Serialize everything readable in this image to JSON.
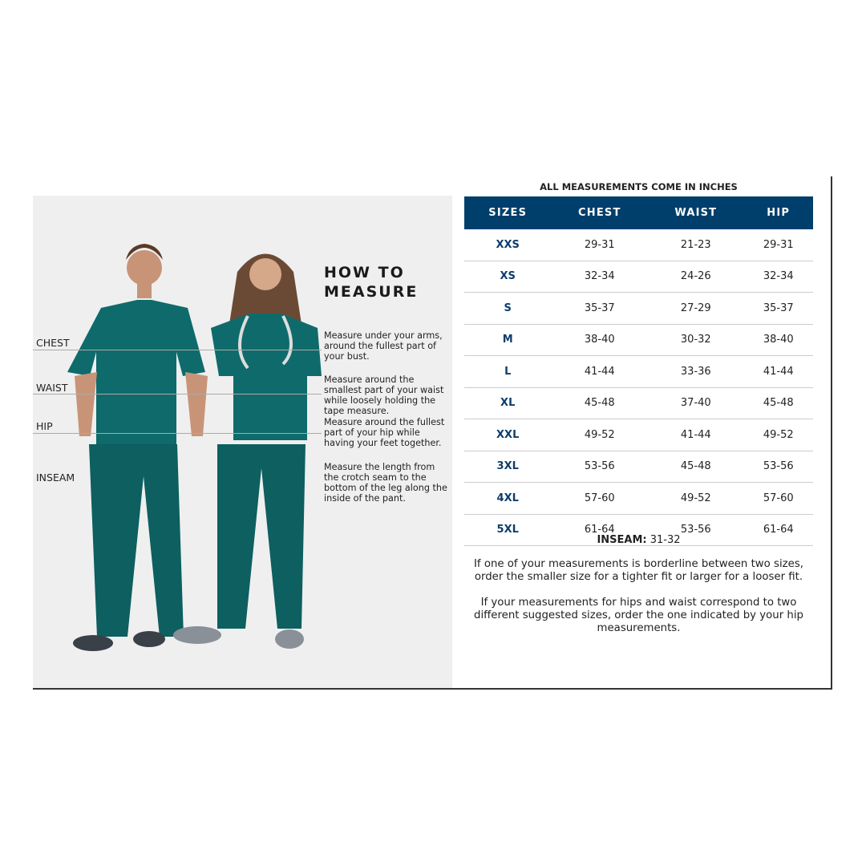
{
  "left": {
    "labels": [
      "CHEST",
      "WAIST",
      "HIP",
      "INSEAM"
    ],
    "heading_line1": "HOW TO",
    "heading_line2": "MEASURE",
    "descriptions": [
      "Measure under your arms, around the fullest part of your bust.",
      "Measure around the smallest part of your waist while loosely holding the tape measure.",
      "Measure around the fullest part of your hip while having your feet together.",
      "Measure the length from the crotch seam to the bottom of the leg along the inside of the pant."
    ],
    "scrub_color": "#0f6b6b"
  },
  "chart": {
    "caption": "ALL MEASUREMENTS COME IN INCHES",
    "header_color": "#003f6b",
    "columns": [
      "SIZES",
      "CHEST",
      "WAIST",
      "HIP"
    ],
    "rows": [
      [
        "XXS",
        "29-31",
        "21-23",
        "29-31"
      ],
      [
        "XS",
        "32-34",
        "24-26",
        "32-34"
      ],
      [
        "S",
        "35-37",
        "27-29",
        "35-37"
      ],
      [
        "M",
        "38-40",
        "30-32",
        "38-40"
      ],
      [
        "L",
        "41-44",
        "33-36",
        "41-44"
      ],
      [
        "XL",
        "45-48",
        "37-40",
        "45-48"
      ],
      [
        "XXL",
        "49-52",
        "41-44",
        "49-52"
      ],
      [
        "3XL",
        "53-56",
        "45-48",
        "53-56"
      ],
      [
        "4XL",
        "57-60",
        "49-52",
        "57-60"
      ],
      [
        "5XL",
        "61-64",
        "53-56",
        "61-64"
      ]
    ],
    "inseam_label": "INSEAM:",
    "inseam_value": "31-32",
    "notes": [
      "If one of your measurements is borderline between two sizes, order the smaller size for a tighter fit or larger for a looser fit.",
      "If your measurements for hips and waist correspond to two different suggested sizes, order the one indicated by your hip measurements."
    ]
  }
}
